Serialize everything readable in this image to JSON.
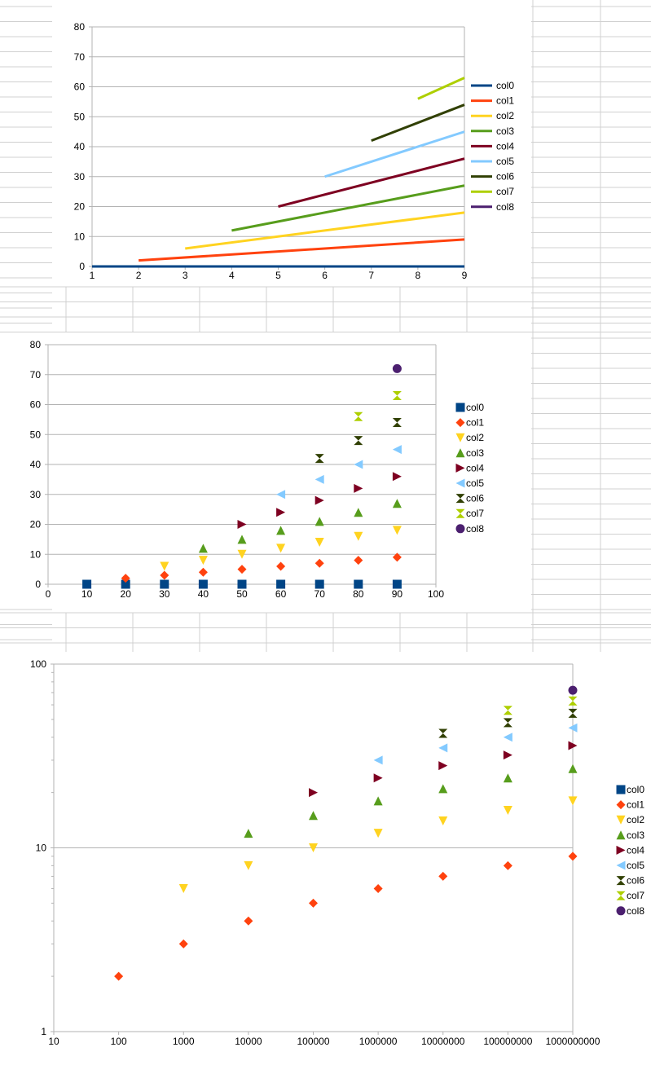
{
  "colors": {
    "col0": "#004586",
    "col1": "#ff420e",
    "col2": "#ffd320",
    "col3": "#579d1c",
    "col4": "#7e0021",
    "col5": "#83caff",
    "col6": "#314004",
    "col7": "#aecf00",
    "col8": "#4b1f6f",
    "gridline": "#b3b3b3",
    "sheet_grid": "#d0d0d0"
  },
  "chart_data": [
    {
      "type": "line",
      "xlim": [
        1,
        9
      ],
      "ylim": [
        0,
        80
      ],
      "x_ticks": [
        "1",
        "2",
        "3",
        "4",
        "5",
        "6",
        "7",
        "8",
        "9"
      ],
      "y_ticks": [
        "0",
        "10",
        "20",
        "30",
        "40",
        "50",
        "60",
        "70",
        "80"
      ],
      "grid": true,
      "legend": "right",
      "series": [
        {
          "name": "col0",
          "points": [
            [
              1,
              0
            ],
            [
              9,
              0
            ]
          ]
        },
        {
          "name": "col1",
          "points": [
            [
              2,
              2
            ],
            [
              9,
              9
            ]
          ]
        },
        {
          "name": "col2",
          "points": [
            [
              3,
              6
            ],
            [
              9,
              18
            ]
          ]
        },
        {
          "name": "col3",
          "points": [
            [
              4,
              12
            ],
            [
              9,
              27
            ]
          ]
        },
        {
          "name": "col4",
          "points": [
            [
              5,
              20
            ],
            [
              9,
              36
            ]
          ]
        },
        {
          "name": "col5",
          "points": [
            [
              6,
              30
            ],
            [
              9,
              45
            ]
          ]
        },
        {
          "name": "col6",
          "points": [
            [
              7,
              42
            ],
            [
              9,
              54
            ]
          ]
        },
        {
          "name": "col7",
          "points": [
            [
              8,
              56
            ],
            [
              9,
              63
            ]
          ]
        },
        {
          "name": "col8",
          "points": []
        }
      ]
    },
    {
      "type": "scatter",
      "xlim": [
        0,
        100
      ],
      "ylim": [
        0,
        80
      ],
      "x_ticks": [
        "0",
        "10",
        "20",
        "30",
        "40",
        "50",
        "60",
        "70",
        "80",
        "90",
        "100"
      ],
      "y_ticks": [
        "0",
        "10",
        "20",
        "30",
        "40",
        "50",
        "60",
        "70",
        "80"
      ],
      "grid": true,
      "legend": "right",
      "series": [
        {
          "name": "col0",
          "points": [
            [
              10,
              0
            ],
            [
              20,
              0
            ],
            [
              30,
              0
            ],
            [
              40,
              0
            ],
            [
              50,
              0
            ],
            [
              60,
              0
            ],
            [
              70,
              0
            ],
            [
              80,
              0
            ],
            [
              90,
              0
            ]
          ]
        },
        {
          "name": "col1",
          "points": [
            [
              20,
              2
            ],
            [
              30,
              3
            ],
            [
              40,
              4
            ],
            [
              50,
              5
            ],
            [
              60,
              6
            ],
            [
              70,
              7
            ],
            [
              80,
              8
            ],
            [
              90,
              9
            ]
          ]
        },
        {
          "name": "col2",
          "points": [
            [
              30,
              6
            ],
            [
              40,
              8
            ],
            [
              50,
              10
            ],
            [
              60,
              12
            ],
            [
              70,
              14
            ],
            [
              80,
              16
            ],
            [
              90,
              18
            ]
          ]
        },
        {
          "name": "col3",
          "points": [
            [
              40,
              12
            ],
            [
              50,
              15
            ],
            [
              60,
              18
            ],
            [
              70,
              21
            ],
            [
              80,
              24
            ],
            [
              90,
              27
            ]
          ]
        },
        {
          "name": "col4",
          "points": [
            [
              50,
              20
            ],
            [
              60,
              24
            ],
            [
              70,
              28
            ],
            [
              80,
              32
            ],
            [
              90,
              36
            ]
          ]
        },
        {
          "name": "col5",
          "points": [
            [
              60,
              30
            ],
            [
              70,
              35
            ],
            [
              80,
              40
            ],
            [
              90,
              45
            ]
          ]
        },
        {
          "name": "col6",
          "points": [
            [
              70,
              42
            ],
            [
              80,
              48
            ],
            [
              90,
              54
            ]
          ]
        },
        {
          "name": "col7",
          "points": [
            [
              80,
              56
            ],
            [
              90,
              63
            ]
          ]
        },
        {
          "name": "col8",
          "points": [
            [
              90,
              72
            ]
          ]
        }
      ]
    },
    {
      "type": "scatter",
      "x_scale": "log",
      "y_scale": "log",
      "xlim": [
        10,
        1000000000
      ],
      "ylim": [
        1,
        100
      ],
      "x_ticks": [
        "10",
        "100",
        "1000",
        "10000",
        "100000",
        "1000000",
        "10000000",
        "100000000",
        "1000000000"
      ],
      "y_ticks": [
        "1",
        "10",
        "100"
      ],
      "grid": true,
      "legend": "right",
      "series": [
        {
          "name": "col0",
          "points": []
        },
        {
          "name": "col1",
          "points": [
            [
              100,
              2
            ],
            [
              1000,
              3
            ],
            [
              10000,
              4
            ],
            [
              100000,
              5
            ],
            [
              1000000,
              6
            ],
            [
              10000000,
              7
            ],
            [
              100000000,
              8
            ],
            [
              1000000000,
              9
            ]
          ]
        },
        {
          "name": "col2",
          "points": [
            [
              1000,
              6
            ],
            [
              10000,
              8
            ],
            [
              100000,
              10
            ],
            [
              1000000,
              12
            ],
            [
              10000000,
              14
            ],
            [
              100000000,
              16
            ],
            [
              1000000000,
              18
            ]
          ]
        },
        {
          "name": "col3",
          "points": [
            [
              10000,
              12
            ],
            [
              100000,
              15
            ],
            [
              1000000,
              18
            ],
            [
              10000000,
              21
            ],
            [
              100000000,
              24
            ],
            [
              1000000000,
              27
            ]
          ]
        },
        {
          "name": "col4",
          "points": [
            [
              100000,
              20
            ],
            [
              1000000,
              24
            ],
            [
              10000000,
              28
            ],
            [
              100000000,
              32
            ],
            [
              1000000000,
              36
            ]
          ]
        },
        {
          "name": "col5",
          "points": [
            [
              1000000,
              30
            ],
            [
              10000000,
              35
            ],
            [
              100000000,
              40
            ],
            [
              1000000000,
              45
            ]
          ]
        },
        {
          "name": "col6",
          "points": [
            [
              10000000,
              42
            ],
            [
              100000000,
              48
            ],
            [
              1000000000,
              54
            ]
          ]
        },
        {
          "name": "col7",
          "points": [
            [
              100000000,
              56
            ],
            [
              1000000000,
              63
            ]
          ]
        },
        {
          "name": "col8",
          "points": [
            [
              1000000000,
              72
            ]
          ]
        }
      ]
    }
  ]
}
